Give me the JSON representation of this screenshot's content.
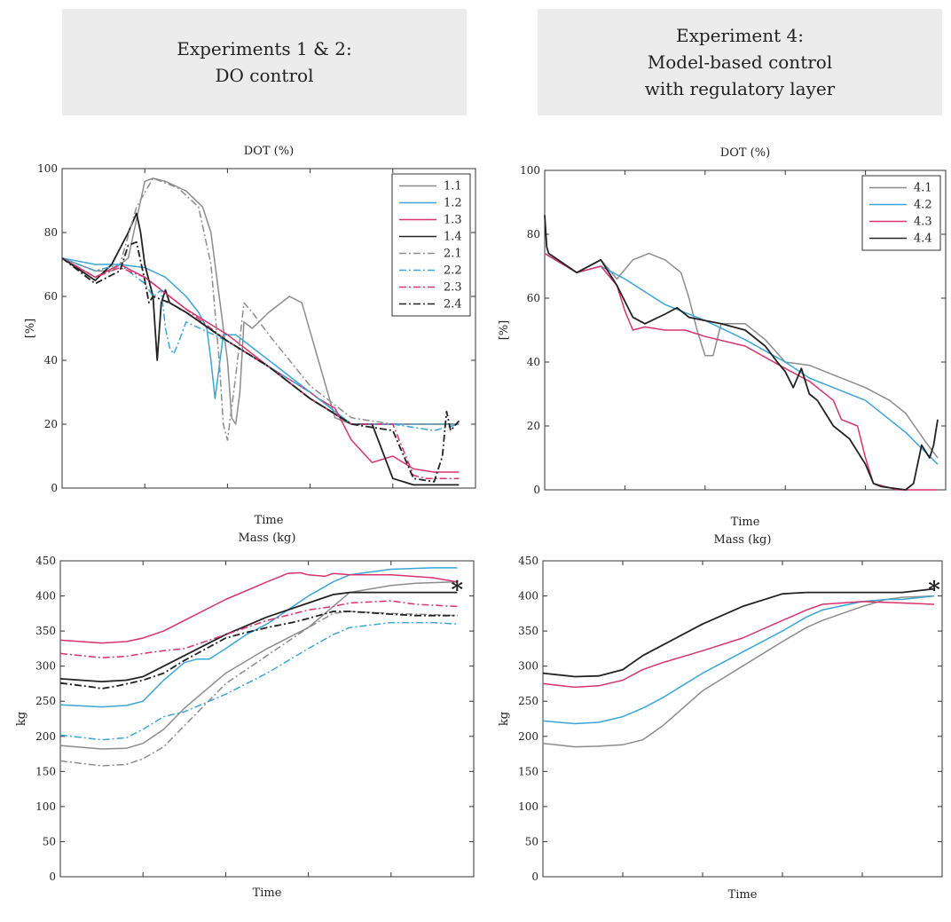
{
  "headers": {
    "left": {
      "line1": "Experiments 1 & 2:",
      "line2": "DO control"
    },
    "right": {
      "line1": "Experiment 4:",
      "line2": "Model-based control",
      "line3": "with regulatory layer"
    }
  },
  "chart_data": [
    {
      "id": "dot-exp12",
      "type": "line",
      "title": "DOT (%)",
      "xlabel": "Time",
      "ylabel": "[%]",
      "xlim": [
        0,
        100
      ],
      "ylim": [
        0,
        100
      ],
      "yticks": [
        0,
        20,
        40,
        60,
        80,
        100
      ],
      "xticks": [
        20,
        40,
        60,
        80
      ],
      "legend_position": "top-right",
      "series": [
        {
          "name": "1.1",
          "color": "#8c8c8c",
          "dash": "solid",
          "x": [
            0,
            8,
            12,
            16,
            20,
            22,
            25,
            30,
            34,
            36,
            38,
            40,
            41,
            42,
            43,
            44,
            46,
            50,
            55,
            58,
            62,
            66,
            70,
            80,
            90,
            96
          ],
          "y": [
            72,
            68,
            68,
            72,
            96,
            97,
            96,
            93,
            88,
            80,
            60,
            40,
            22,
            20,
            30,
            52,
            50,
            55,
            60,
            58,
            40,
            22,
            20,
            20,
            20,
            20
          ]
        },
        {
          "name": "1.2",
          "color": "#3aa5d8",
          "dash": "solid",
          "x": [
            0,
            8,
            14,
            20,
            25,
            30,
            33,
            35,
            36,
            37,
            38,
            39,
            42,
            50,
            60,
            70,
            80,
            90,
            96
          ],
          "y": [
            72,
            70,
            70,
            69,
            66,
            60,
            55,
            50,
            40,
            28,
            38,
            48,
            48,
            40,
            30,
            20,
            20,
            20,
            20
          ]
        },
        {
          "name": "1.3",
          "color": "#d8336a",
          "dash": "solid",
          "x": [
            0,
            8,
            14,
            20,
            30,
            40,
            50,
            55,
            60,
            62,
            66,
            70,
            75,
            80,
            85,
            90,
            96
          ],
          "y": [
            72,
            66,
            70,
            66,
            56,
            48,
            38,
            34,
            30,
            28,
            25,
            15,
            8,
            10,
            6,
            5,
            5
          ]
        },
        {
          "name": "1.4",
          "color": "#222222",
          "dash": "solid",
          "x": [
            0,
            8,
            12,
            16,
            18,
            19,
            20,
            22,
            23,
            24,
            25,
            26,
            30,
            40,
            50,
            60,
            70,
            75,
            80,
            85,
            96
          ],
          "y": [
            72,
            65,
            70,
            80,
            86,
            80,
            70,
            60,
            40,
            58,
            62,
            58,
            55,
            46,
            38,
            28,
            20,
            20,
            3,
            1,
            1
          ]
        },
        {
          "name": "2.1",
          "color": "#8c8c8c",
          "dash": "dashdot",
          "x": [
            0,
            8,
            14,
            18,
            22,
            28,
            33,
            36,
            38,
            39,
            40,
            42,
            44,
            46,
            50,
            60,
            70,
            80,
            96
          ],
          "y": [
            72,
            68,
            70,
            88,
            97,
            94,
            88,
            70,
            40,
            20,
            15,
            35,
            58,
            55,
            48,
            32,
            22,
            20,
            20
          ]
        },
        {
          "name": "2.2",
          "color": "#3aa5d8",
          "dash": "dashdot",
          "x": [
            0,
            8,
            14,
            20,
            22,
            24,
            25,
            26,
            27,
            28,
            30,
            40,
            50,
            60,
            70,
            80,
            90,
            96
          ],
          "y": [
            72,
            68,
            70,
            64,
            60,
            62,
            50,
            44,
            42,
            45,
            52,
            46,
            38,
            30,
            20,
            20,
            18,
            20
          ]
        },
        {
          "name": "2.3",
          "color": "#d8336a",
          "dash": "dashdot",
          "x": [
            0,
            8,
            14,
            20,
            30,
            40,
            50,
            60,
            70,
            80,
            85,
            88,
            96
          ],
          "y": [
            72,
            66,
            69,
            66,
            56,
            46,
            38,
            28,
            20,
            20,
            4,
            3,
            3
          ]
        },
        {
          "name": "2.4",
          "color": "#222222",
          "dash": "dashdot",
          "x": [
            0,
            8,
            14,
            16,
            18,
            20,
            21,
            22,
            26,
            30,
            40,
            50,
            60,
            70,
            80,
            85,
            90,
            92,
            93,
            94,
            96
          ],
          "y": [
            72,
            64,
            68,
            76,
            77,
            65,
            58,
            60,
            58,
            55,
            46,
            38,
            28,
            20,
            18,
            3,
            2,
            10,
            24,
            18,
            21
          ]
        }
      ]
    },
    {
      "id": "dot-exp4",
      "type": "line",
      "title": "DOT (%)",
      "xlabel": "Time",
      "ylabel": "[%]",
      "xlim": [
        0,
        100
      ],
      "ylim": [
        0,
        100
      ],
      "yticks": [
        0,
        20,
        40,
        60,
        80,
        100
      ],
      "xticks": [
        20,
        40,
        60,
        80
      ],
      "legend_position": "top-right",
      "series": [
        {
          "name": "4.1",
          "color": "#8c8c8c",
          "dash": "solid",
          "x": [
            0,
            8,
            14,
            18,
            22,
            26,
            30,
            34,
            36,
            38,
            40,
            42,
            44,
            46,
            50,
            55,
            60,
            66,
            72,
            80,
            86,
            90,
            95,
            98
          ],
          "y": [
            74,
            68,
            72,
            66,
            72,
            74,
            72,
            68,
            60,
            50,
            42,
            42,
            52,
            52,
            52,
            47,
            40,
            39,
            36,
            32,
            28,
            24,
            15,
            10
          ]
        },
        {
          "name": "4.2",
          "color": "#3aa5d8",
          "dash": "solid",
          "x": [
            0,
            8,
            14,
            20,
            30,
            40,
            50,
            60,
            66,
            72,
            80,
            90,
            98
          ],
          "y": [
            74,
            68,
            70,
            66,
            58,
            53,
            47,
            40,
            35,
            32,
            28,
            18,
            8
          ]
        },
        {
          "name": "4.3",
          "color": "#d8336a",
          "dash": "solid",
          "x": [
            0,
            8,
            14,
            18,
            20,
            22,
            25,
            30,
            35,
            40,
            50,
            60,
            66,
            72,
            74,
            78,
            80,
            82,
            88,
            98
          ],
          "y": [
            74,
            68,
            70,
            64,
            56,
            50,
            51,
            50,
            50,
            48,
            45,
            38,
            34,
            28,
            22,
            20,
            10,
            2,
            0,
            0
          ]
        },
        {
          "name": "4.4",
          "color": "#222222",
          "dash": "solid",
          "x": [
            0,
            0.5,
            1,
            8,
            14,
            18,
            22,
            25,
            30,
            33,
            36,
            40,
            44,
            50,
            55,
            58,
            60,
            62,
            64,
            66,
            68,
            70,
            72,
            76,
            80,
            82,
            84,
            90,
            92,
            94,
            96,
            97,
            98
          ],
          "y": [
            86,
            76,
            74,
            68,
            72,
            64,
            54,
            52,
            55,
            57,
            54,
            53,
            52,
            50,
            45,
            40,
            37,
            32,
            38,
            30,
            28,
            24,
            20,
            16,
            8,
            2,
            1,
            0,
            2,
            14,
            10,
            14,
            22
          ]
        }
      ]
    },
    {
      "id": "mass-exp12",
      "type": "line",
      "title": "Mass (kg)",
      "xlabel": "Time",
      "ylabel": "kg",
      "xlim": [
        0,
        100
      ],
      "ylim": [
        0,
        450
      ],
      "yticks": [
        0,
        50,
        100,
        150,
        200,
        250,
        300,
        350,
        400,
        450
      ],
      "xticks": [
        20,
        40,
        60,
        80
      ],
      "end_marker": {
        "symbol": "*",
        "x": 96,
        "y": 410
      },
      "series": [
        {
          "name": "1.1",
          "color": "#8c8c8c",
          "dash": "solid",
          "x": [
            0,
            10,
            16,
            20,
            25,
            30,
            40,
            50,
            60,
            66,
            70,
            80,
            86,
            96
          ],
          "y": [
            187,
            182,
            183,
            190,
            210,
            240,
            290,
            325,
            355,
            385,
            405,
            415,
            418,
            420
          ]
        },
        {
          "name": "1.2",
          "color": "#3aa5d8",
          "dash": "solid",
          "x": [
            0,
            10,
            16,
            20,
            25,
            30,
            33,
            36,
            40,
            45,
            50,
            60,
            66,
            70,
            80,
            90,
            96
          ],
          "y": [
            245,
            242,
            244,
            250,
            280,
            305,
            310,
            310,
            325,
            345,
            360,
            400,
            420,
            430,
            438,
            440,
            440
          ]
        },
        {
          "name": "1.3",
          "color": "#d8336a",
          "dash": "solid",
          "x": [
            0,
            10,
            16,
            20,
            25,
            30,
            40,
            50,
            55,
            58,
            60,
            64,
            66,
            70,
            80,
            90,
            96
          ],
          "y": [
            337,
            333,
            335,
            340,
            350,
            365,
            395,
            420,
            432,
            433,
            430,
            428,
            432,
            430,
            430,
            426,
            420
          ]
        },
        {
          "name": "1.4",
          "color": "#222222",
          "dash": "solid",
          "x": [
            0,
            10,
            16,
            20,
            25,
            30,
            40,
            50,
            60,
            66,
            70,
            80,
            96
          ],
          "y": [
            282,
            278,
            280,
            285,
            300,
            315,
            345,
            370,
            390,
            402,
            405,
            405,
            405
          ]
        },
        {
          "name": "2.1",
          "color": "#8c8c8c",
          "dash": "dashdot",
          "x": [
            0,
            10,
            16,
            20,
            25,
            30,
            40,
            50,
            60,
            66,
            70,
            80,
            86,
            96
          ],
          "y": [
            165,
            158,
            160,
            168,
            185,
            215,
            275,
            315,
            355,
            375,
            378,
            375,
            374,
            372
          ]
        },
        {
          "name": "2.2",
          "color": "#3aa5d8",
          "dash": "dashdot",
          "x": [
            0,
            10,
            16,
            20,
            25,
            30,
            40,
            50,
            60,
            66,
            70,
            80,
            90,
            96
          ],
          "y": [
            202,
            195,
            198,
            210,
            228,
            235,
            260,
            290,
            325,
            345,
            355,
            362,
            362,
            360
          ]
        },
        {
          "name": "2.3",
          "color": "#d8336a",
          "dash": "dashdot",
          "x": [
            0,
            10,
            16,
            20,
            25,
            30,
            40,
            50,
            60,
            66,
            70,
            80,
            86,
            96
          ],
          "y": [
            318,
            312,
            314,
            318,
            322,
            325,
            345,
            365,
            380,
            385,
            390,
            393,
            388,
            385
          ]
        },
        {
          "name": "2.4",
          "color": "#222222",
          "dash": "dashdot",
          "x": [
            0,
            8,
            10,
            14,
            20,
            25,
            30,
            40,
            45,
            50,
            56,
            60,
            66,
            70,
            80,
            86,
            96
          ],
          "y": [
            276,
            270,
            268,
            272,
            280,
            290,
            308,
            340,
            348,
            355,
            362,
            368,
            378,
            378,
            374,
            372,
            372
          ]
        }
      ]
    },
    {
      "id": "mass-exp4",
      "type": "line",
      "title": "Mass (kg)",
      "xlabel": "Time",
      "ylabel": "kg",
      "xlim": [
        0,
        100
      ],
      "ylim": [
        0,
        450
      ],
      "yticks": [
        0,
        50,
        100,
        150,
        200,
        250,
        300,
        350,
        400,
        450
      ],
      "xticks": [
        20,
        40,
        60,
        80
      ],
      "end_marker": {
        "symbol": "*",
        "x": 98,
        "y": 410
      },
      "series": [
        {
          "name": "4.1",
          "color": "#8c8c8c",
          "dash": "solid",
          "x": [
            0,
            8,
            14,
            20,
            25,
            30,
            40,
            50,
            60,
            66,
            70,
            80,
            86,
            90,
            98
          ],
          "y": [
            190,
            185,
            186,
            188,
            195,
            215,
            265,
            300,
            335,
            355,
            365,
            385,
            395,
            398,
            400
          ]
        },
        {
          "name": "4.2",
          "color": "#3aa5d8",
          "dash": "solid",
          "x": [
            0,
            8,
            14,
            20,
            25,
            30,
            40,
            50,
            60,
            66,
            70,
            80,
            86,
            90,
            98
          ],
          "y": [
            222,
            218,
            220,
            228,
            240,
            255,
            290,
            320,
            350,
            370,
            380,
            392,
            395,
            395,
            400
          ]
        },
        {
          "name": "4.3",
          "color": "#d8336a",
          "dash": "solid",
          "x": [
            0,
            8,
            14,
            20,
            25,
            30,
            40,
            50,
            60,
            66,
            70,
            80,
            90,
            98
          ],
          "y": [
            275,
            270,
            272,
            280,
            295,
            305,
            322,
            340,
            365,
            380,
            388,
            392,
            390,
            388
          ]
        },
        {
          "name": "4.4",
          "color": "#222222",
          "dash": "solid",
          "x": [
            0,
            8,
            14,
            20,
            25,
            30,
            40,
            50,
            60,
            66,
            70,
            80,
            90,
            98
          ],
          "y": [
            290,
            285,
            286,
            295,
            315,
            330,
            360,
            385,
            403,
            405,
            405,
            405,
            405,
            410
          ]
        }
      ]
    }
  ]
}
